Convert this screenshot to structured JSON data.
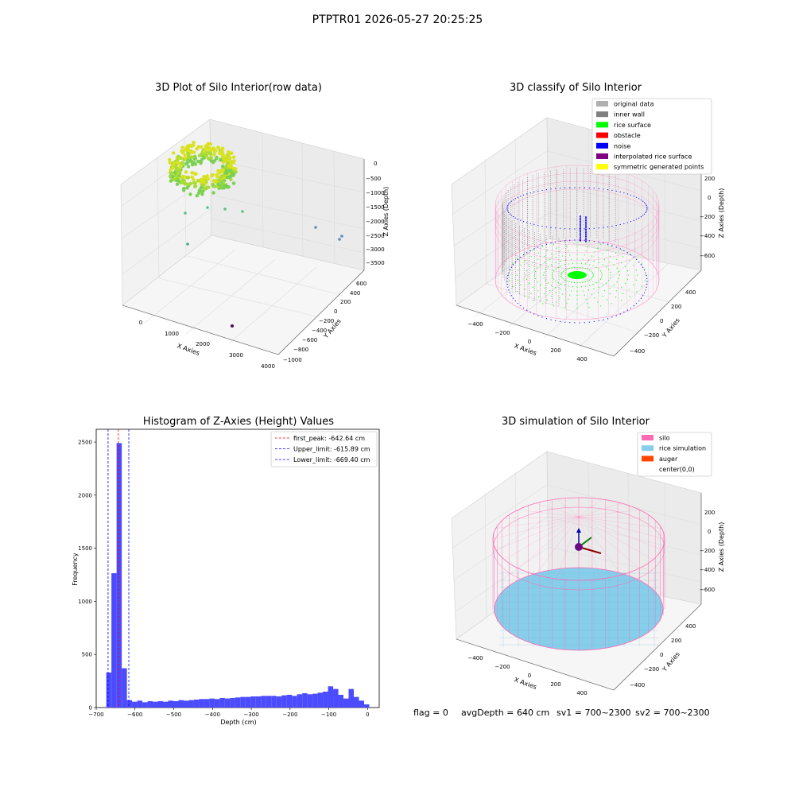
{
  "suptitle": "PTPTR01 2026-05-27 20:25:25",
  "footer": {
    "flag": "flag = 0",
    "avg_depth": "avgDepth = 640 cm",
    "sv1": "sv1 = 700~2300",
    "sv2": "sv2 = 700~2300"
  },
  "colors": {
    "original": "#b0b0b0",
    "inner_wall": "#808080",
    "rice_surface": "#00ff00",
    "obstacle": "#ff0000",
    "noise": "#0000ff",
    "interpolated": "#800080",
    "symmetric": "#ffff00",
    "silo": "#ff69b4",
    "rice_sim": "#87ceeb",
    "auger": "#ff4500",
    "hist_bar": "#4b4bff"
  },
  "panels": {
    "raw": {
      "title": "3D Plot of Silo Interior(row data)",
      "xlabel": "X Axies",
      "ylabel": "Y Axies",
      "zlabel": "Z Axies (Depth)",
      "xticks": [
        "0",
        "1000",
        "2000",
        "3000",
        "4000"
      ],
      "yticks": [
        "600",
        "400",
        "200",
        "0",
        "−200",
        "−400",
        "−600",
        "−800",
        "−1000"
      ],
      "zticks": [
        "0",
        "−500",
        "−1000",
        "−1500",
        "−2000",
        "−2500",
        "−3000",
        "−3500"
      ]
    },
    "classify": {
      "title": "3D classify of Silo Interior",
      "xlabel": "X Axies",
      "ylabel": "Y Axies",
      "zlabel": "Z Axies (Depth)",
      "xticks": [
        "−400",
        "−200",
        "0",
        "200",
        "400"
      ],
      "yticks": [
        "400",
        "200",
        "0",
        "−200",
        "−400"
      ],
      "zticks": [
        "200",
        "0",
        "−200",
        "−400",
        "−600"
      ],
      "legend": [
        {
          "label": "original data",
          "color": "#b0b0b0"
        },
        {
          "label": "inner wall",
          "color": "#808080"
        },
        {
          "label": "rice surface",
          "color": "#00ff00"
        },
        {
          "label": "obstacle",
          "color": "#ff0000"
        },
        {
          "label": "noise",
          "color": "#0000ff"
        },
        {
          "label": "interpolated rice surface",
          "color": "#800080"
        },
        {
          "label": "symmetric generated points",
          "color": "#ffff00"
        }
      ]
    },
    "simulation": {
      "title": "3D simulation of Silo Interior",
      "xlabel": "X Axies",
      "ylabel": "Y Axies",
      "zlabel": "Z Axies (Depth)",
      "xticks": [
        "−400",
        "−200",
        "0",
        "200",
        "400"
      ],
      "yticks": [
        "400",
        "200",
        "0",
        "−200",
        "−400"
      ],
      "zticks": [
        "200",
        "0",
        "−200",
        "−400",
        "−600"
      ],
      "legend": [
        {
          "label": "silo",
          "color": "#ff69b4"
        },
        {
          "label": "rice simulation",
          "color": "#87ceeb"
        },
        {
          "label": "auger",
          "color": "#ff4500"
        },
        {
          "label": "center(0,0)",
          "color": ""
        }
      ]
    }
  },
  "chart_data": {
    "type": "bar",
    "title": "Histogram of Z-Axies (Height) Values",
    "xlabel": "Depth (cm)",
    "ylabel": "Frequency",
    "xlim": [
      -700,
      30
    ],
    "ylim": [
      0,
      2620
    ],
    "xticks": [
      -700,
      -600,
      -500,
      -400,
      -300,
      -200,
      -100,
      0
    ],
    "yticks": [
      0,
      500,
      1000,
      1500,
      2000,
      2500
    ],
    "bin_width": 13.3,
    "bin_starts": [
      -674,
      -660.7,
      -647.4,
      -634.1,
      -620.8,
      -607.5,
      -594.2,
      -580.9,
      -567.6,
      -554.3,
      -541,
      -527.7,
      -514.4,
      -501.1,
      -487.8,
      -474.5,
      -461.2,
      -447.9,
      -434.6,
      -421.3,
      -408,
      -394.7,
      -381.4,
      -368.1,
      -354.8,
      -341.5,
      -328.2,
      -314.9,
      -301.6,
      -288.3,
      -275,
      -261.7,
      -248.4,
      -235.1,
      -221.8,
      -208.5,
      -195.2,
      -181.9,
      -168.6,
      -155.3,
      -142,
      -128.7,
      -115.4,
      -102.1,
      -88.8,
      -75.5,
      -62.2,
      -48.9,
      -35.6,
      -22.3,
      -9
    ],
    "values": [
      330,
      1265,
      2490,
      370,
      70,
      55,
      65,
      50,
      60,
      55,
      60,
      55,
      65,
      60,
      70,
      65,
      70,
      75,
      80,
      80,
      85,
      80,
      90,
      85,
      90,
      95,
      100,
      100,
      105,
      105,
      110,
      110,
      110,
      105,
      115,
      120,
      110,
      125,
      135,
      125,
      130,
      140,
      150,
      200,
      175,
      120,
      85,
      175,
      100,
      65,
      30
    ],
    "vlines": [
      {
        "label": "first_peak: -642.64 cm",
        "x": -642.64,
        "color": "#ff0000"
      },
      {
        "label": "Upper_limit: -615.89 cm",
        "x": -615.89,
        "color": "#0000ff"
      },
      {
        "label": "Lower_limit: -669.40 cm",
        "x": -669.4,
        "color": "#0000ff"
      }
    ]
  }
}
